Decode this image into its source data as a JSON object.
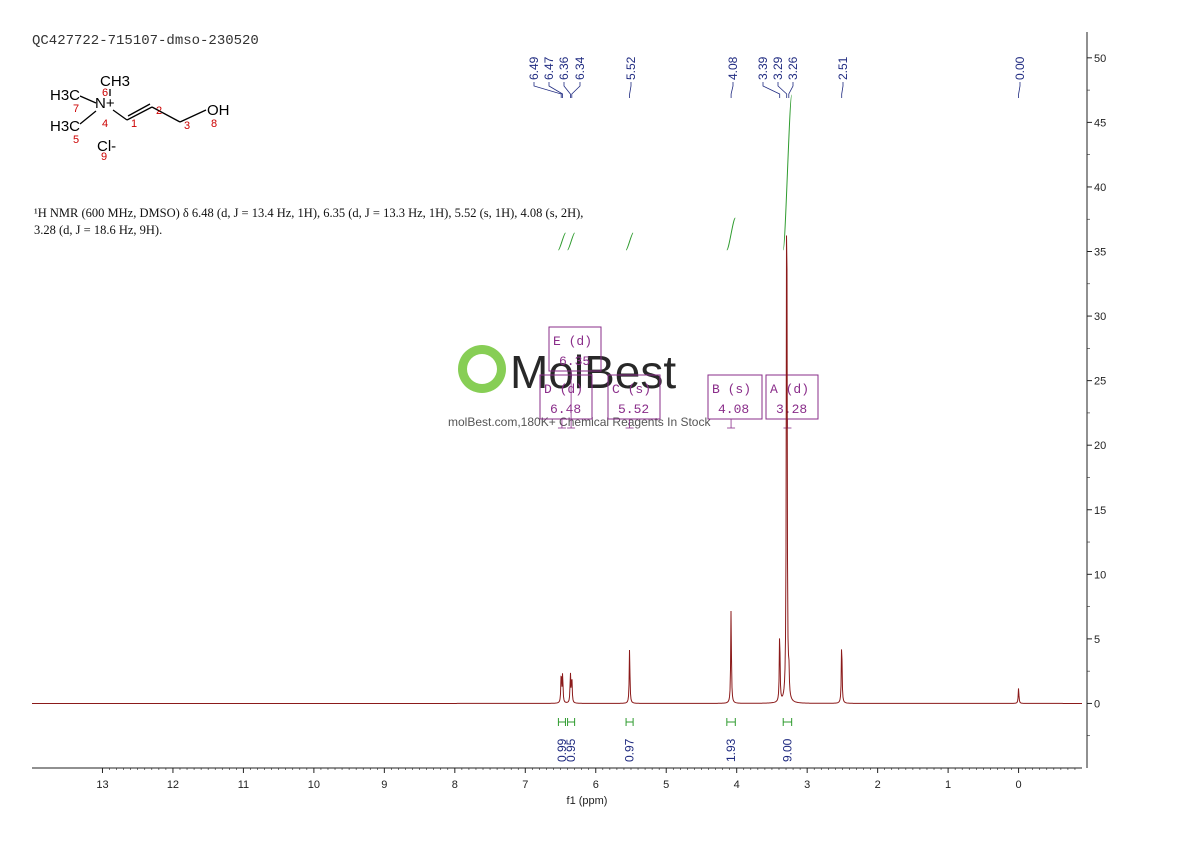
{
  "sample_id": "QC427722-715107-dmso-230520",
  "nmr_description": "¹H NMR (600 MHz, DMSO) δ 6.48 (d, J = 13.4 Hz, 1H), 6.35 (d, J = 13.3 Hz, 1H), 5.52 (s, 1H), 4.08 (s, 2H), 3.28 (d, J = 18.6 Hz, 9H).",
  "structure": {
    "labels": [
      "H3C",
      "CH3",
      "N+",
      "H3C",
      "Cl-",
      "OH"
    ],
    "atom_numbers": [
      "1",
      "2",
      "3",
      "4",
      "5",
      "6",
      "7",
      "8",
      "9"
    ]
  },
  "watermark": {
    "brand": "MolBest",
    "tagline": "molBest.com,180K+ Chemical Reagents In Stock"
  },
  "colors": {
    "spectrum": "#8b1a1a",
    "integral": "#2e9b2e",
    "peak_label": "#1f2a80",
    "multiplet": "#8a2d8a",
    "axis": "#222222",
    "logo": "#7ac943"
  },
  "chart_data": {
    "type": "line",
    "xlabel": "f1 (ppm)",
    "xlim": [
      14.0,
      -0.9
    ],
    "ylim": [
      -5,
      52
    ],
    "x_ticks": [
      13,
      12,
      11,
      10,
      9,
      8,
      7,
      6,
      5,
      4,
      3,
      2,
      1,
      0
    ],
    "y_ticks": [
      50,
      45,
      40,
      35,
      30,
      25,
      20,
      15,
      10,
      5,
      0
    ],
    "x_tick_labels": [
      "13",
      "12",
      "11",
      "10",
      "9",
      "8",
      "7",
      "6",
      "5",
      "4",
      "3",
      "2",
      "1",
      "0"
    ],
    "y_tick_labels": [
      "50",
      "45",
      "40",
      "35",
      "30",
      "25",
      "20",
      "15",
      "10",
      "5",
      "0"
    ],
    "peak_labels": [
      "6.49",
      "6.47",
      "6.36",
      "6.34",
      "5.52",
      "4.08",
      "3.39",
      "3.29",
      "3.26",
      "2.51",
      "0.00"
    ],
    "peaks": [
      {
        "ppm": 6.49,
        "height": 2.5
      },
      {
        "ppm": 6.47,
        "height": 2.3
      },
      {
        "ppm": 6.36,
        "height": 2.3
      },
      {
        "ppm": 6.34,
        "height": 2.1
      },
      {
        "ppm": 5.52,
        "height": 4.3
      },
      {
        "ppm": 4.08,
        "height": 7.3
      },
      {
        "ppm": 3.39,
        "height": 5.8
      },
      {
        "ppm": 3.29,
        "height": 47.0
      },
      {
        "ppm": 3.26,
        "height": 2.0
      },
      {
        "ppm": 2.51,
        "height": 5.1
      },
      {
        "ppm": 0.0,
        "height": 1.2
      }
    ],
    "integrals": [
      {
        "from": 6.53,
        "to": 6.43,
        "value": "0.99"
      },
      {
        "from": 6.4,
        "to": 6.3,
        "value": "0.95"
      },
      {
        "from": 5.57,
        "to": 5.47,
        "value": "0.97"
      },
      {
        "from": 4.14,
        "to": 4.02,
        "value": "1.93"
      },
      {
        "from": 3.34,
        "to": 3.22,
        "value": "9.00"
      }
    ],
    "multiplets": [
      {
        "label": "E (d)",
        "value": "6.35"
      },
      {
        "label": "D (d)",
        "value": "6.48"
      },
      {
        "label": "C (s)",
        "value": "5.52"
      },
      {
        "label": "B (s)",
        "value": "4.08"
      },
      {
        "label": "A (d)",
        "value": "3.28"
      }
    ]
  }
}
